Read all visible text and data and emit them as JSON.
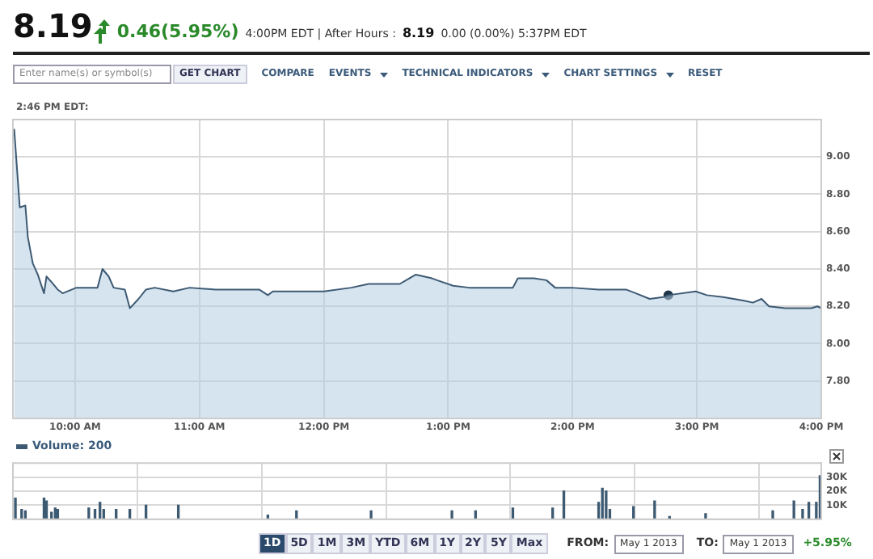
{
  "chart_data": [
    {
      "type": "area",
      "xlim": [
        9.5,
        16
      ],
      "ylim": [
        7.6,
        9.2
      ],
      "xticks": [
        {
          "value": 10,
          "label": "10:00 AM"
        },
        {
          "value": 11,
          "label": "11:00 AM"
        },
        {
          "value": 12,
          "label": "12:00 PM"
        },
        {
          "value": 13,
          "label": "1:00 PM"
        },
        {
          "value": 14,
          "label": "2:00 PM"
        },
        {
          "value": 15,
          "label": "3:00 PM"
        },
        {
          "value": 16,
          "label": "4:00 PM"
        }
      ],
      "yticks": [
        {
          "value": 7.8,
          "label": "7.80"
        },
        {
          "value": 8,
          "label": "8.00"
        },
        {
          "value": 8.2,
          "label": "8.20"
        },
        {
          "value": 8.4,
          "label": "8.40"
        },
        {
          "value": 8.6,
          "label": "8.60"
        },
        {
          "value": 8.8,
          "label": "8.80"
        },
        {
          "value": 9,
          "label": "9.00"
        }
      ],
      "grid": true,
      "marker": "none",
      "series": [
        {
          "type": "area",
          "color": "#3d5a73",
          "x": [
            9.51,
            9.555,
            9.6,
            9.62,
            9.66,
            9.7,
            9.75,
            9.77,
            9.81,
            9.86,
            9.9,
            10.01,
            10.18,
            10.22,
            10.27,
            10.31,
            10.4,
            10.44,
            10.51,
            10.57,
            10.64,
            10.79,
            10.92,
            11.13,
            11.48,
            11.55,
            11.59,
            11.83,
            12.0,
            12.22,
            12.36,
            12.61,
            12.74,
            12.87,
            12.91,
            13.04,
            13.17,
            13.52,
            13.56,
            13.69,
            13.79,
            13.86,
            13.99,
            14.21,
            14.43,
            14.51,
            14.62,
            14.73,
            14.77,
            14.99,
            15.08,
            15.21,
            15.38,
            15.45,
            15.52,
            15.58,
            15.71,
            15.92,
            15.97,
            16.0
          ],
          "values": [
            9.15,
            8.73,
            8.74,
            8.57,
            8.43,
            8.37,
            8.27,
            8.36,
            8.33,
            8.29,
            8.27,
            8.3,
            8.3,
            8.4,
            8.36,
            8.3,
            8.29,
            8.19,
            8.24,
            8.29,
            8.3,
            8.28,
            8.3,
            8.29,
            8.29,
            8.26,
            8.28,
            8.28,
            8.28,
            8.3,
            8.32,
            8.32,
            8.37,
            8.35,
            8.34,
            8.31,
            8.3,
            8.3,
            8.35,
            8.35,
            8.34,
            8.3,
            8.3,
            8.29,
            8.29,
            8.27,
            8.24,
            8.25,
            8.26,
            8.28,
            8.26,
            8.25,
            8.23,
            8.22,
            8.24,
            8.2,
            8.19,
            8.19,
            8.2,
            8.19
          ]
        },
        {
          "type": "scatter",
          "color": "#1f3447",
          "marker": "circle",
          "x": [
            14.77
          ],
          "values": [
            8.26
          ]
        }
      ],
      "annotations": [
        "8.19",
        "0.46(5.95%)",
        "4:00PM EDT | After Hours :",
        "8.19",
        "0.00 (0.00%) 5:37PM EDT",
        "Enter name(s) or symbol(s)",
        "GET CHART",
        "COMPARE",
        "EVENTS",
        "TECHNICAL INDICATORS",
        "CHART SETTINGS",
        "RESET",
        "2:46 PM EDT:"
      ]
    },
    {
      "type": "bar",
      "xlim": [
        9.5,
        16
      ],
      "ylim": [
        0,
        40000
      ],
      "xticks": [
        {
          "value": 10,
          "label": null
        },
        {
          "value": 11,
          "label": null
        },
        {
          "value": 12,
          "label": null
        },
        {
          "value": 13,
          "label": null
        },
        {
          "value": 14,
          "label": null
        },
        {
          "value": 15,
          "label": null
        },
        {
          "value": 16,
          "label": null
        }
      ],
      "yticks": [
        {
          "value": 10000,
          "label": "10K"
        },
        {
          "value": 20000,
          "label": "20K"
        },
        {
          "value": 30000,
          "label": "30K"
        }
      ],
      "tick_labels": "y",
      "grid": true,
      "legend": "top left",
      "series": [
        {
          "name": "Volume: 200",
          "color": "#3d5a73",
          "x": [
            9.52,
            9.57,
            9.6,
            9.75,
            9.77,
            9.81,
            9.84,
            9.86,
            10.11,
            10.16,
            10.2,
            10.23,
            10.33,
            10.44,
            10.57,
            10.83,
            11.55,
            11.78,
            12.38,
            13.03,
            13.22,
            13.52,
            13.84,
            13.93,
            14.21,
            14.24,
            14.27,
            14.3,
            14.49,
            14.66,
            14.78,
            15.07,
            15.61,
            15.78,
            15.85,
            15.9,
            15.96,
            15.99
          ],
          "values": [
            15000,
            7000,
            6000,
            15000,
            13000,
            5000,
            8000,
            7000,
            8000,
            7000,
            12000,
            7000,
            7000,
            7000,
            10000,
            10000,
            3000,
            6000,
            6000,
            6000,
            6000,
            8000,
            8000,
            20000,
            12000,
            22000,
            20000,
            7000,
            9000,
            13000,
            2000,
            4000,
            6000,
            13000,
            7000,
            12000,
            12000,
            31000
          ]
        }
      ],
      "annotations": [
        "1D",
        "5D",
        "1M",
        "3M",
        "YTD",
        "6M",
        "1Y",
        "2Y",
        "5Y",
        "Max",
        "FROM:",
        "May 1 2013",
        "TO:",
        "May 1 2013",
        "+5.95%"
      ]
    }
  ]
}
